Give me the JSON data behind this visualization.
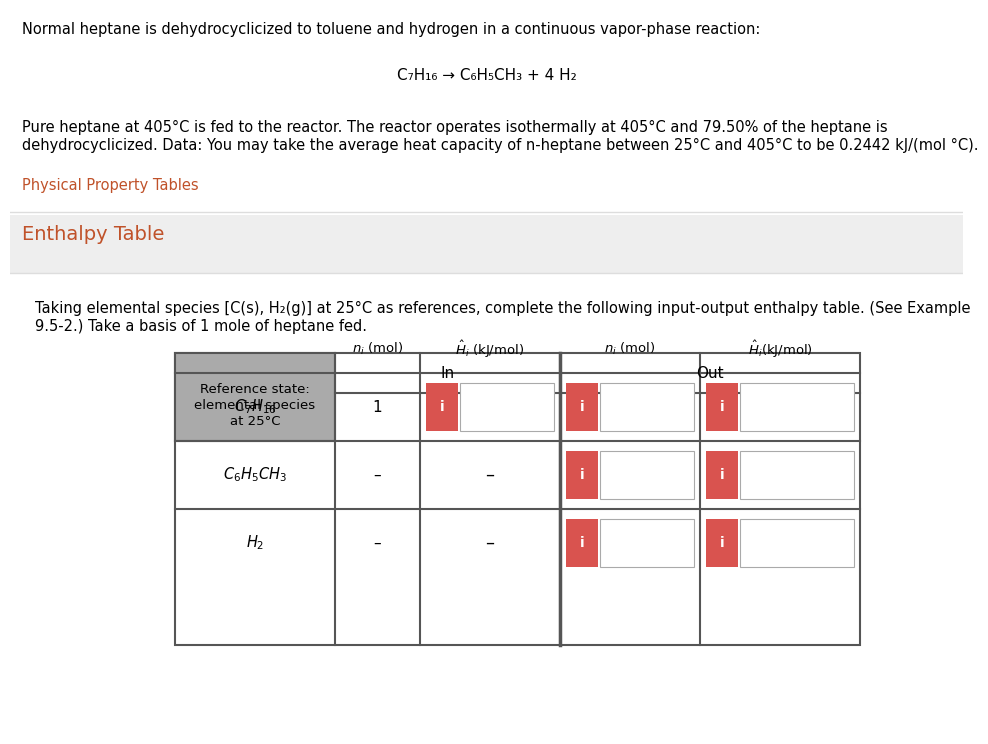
{
  "title_text": "Normal heptane is dehydrocyclicized to toluene and hydrogen in a continuous vapor-phase reaction:",
  "reaction_line": "C₇H₁₆ → C₆H₅CH₃ + 4 H₂",
  "para_line1": "Pure heptane at 405°C is fed to the reactor. The reactor operates isothermally at 405°C and 79.50% of the heptane is",
  "para_line2": "dehydrocyclicized. Data: You may take the average heat capacity of n-heptane between 25°C and 405°C to be 0.2442 kJ/(mol °C).",
  "link_text": "Physical Property Tables",
  "section_header": "Enthalpy Table",
  "desc_line1": "Taking elemental species [C(s), H₂(g)] at 25°C as references, complete the following input-output enthalpy table. (See Example",
  "desc_line2": "9.5-2.) Take a basis of 1 mole of heptane fed.",
  "orange_color": "#d9534f",
  "gray_header_bg": "#aaaaaa",
  "white_bg": "#ffffff",
  "link_color": "#c0522a",
  "section_bg": "#eeeeee",
  "border_color": "#555555",
  "light_border": "#cccccc",
  "separator_color": "#dddddd",
  "species_latex": [
    "$C_7H_{16}$",
    "$C_6H_5CH_3$",
    "$H_2$"
  ],
  "ni_in_vals": [
    "1",
    "–",
    "–"
  ],
  "Hi_in_show_btn": [
    true,
    false,
    false
  ],
  "ni_out_show_btn": [
    true,
    true,
    true
  ],
  "Hi_out_show_btn": [
    true,
    true,
    true
  ]
}
